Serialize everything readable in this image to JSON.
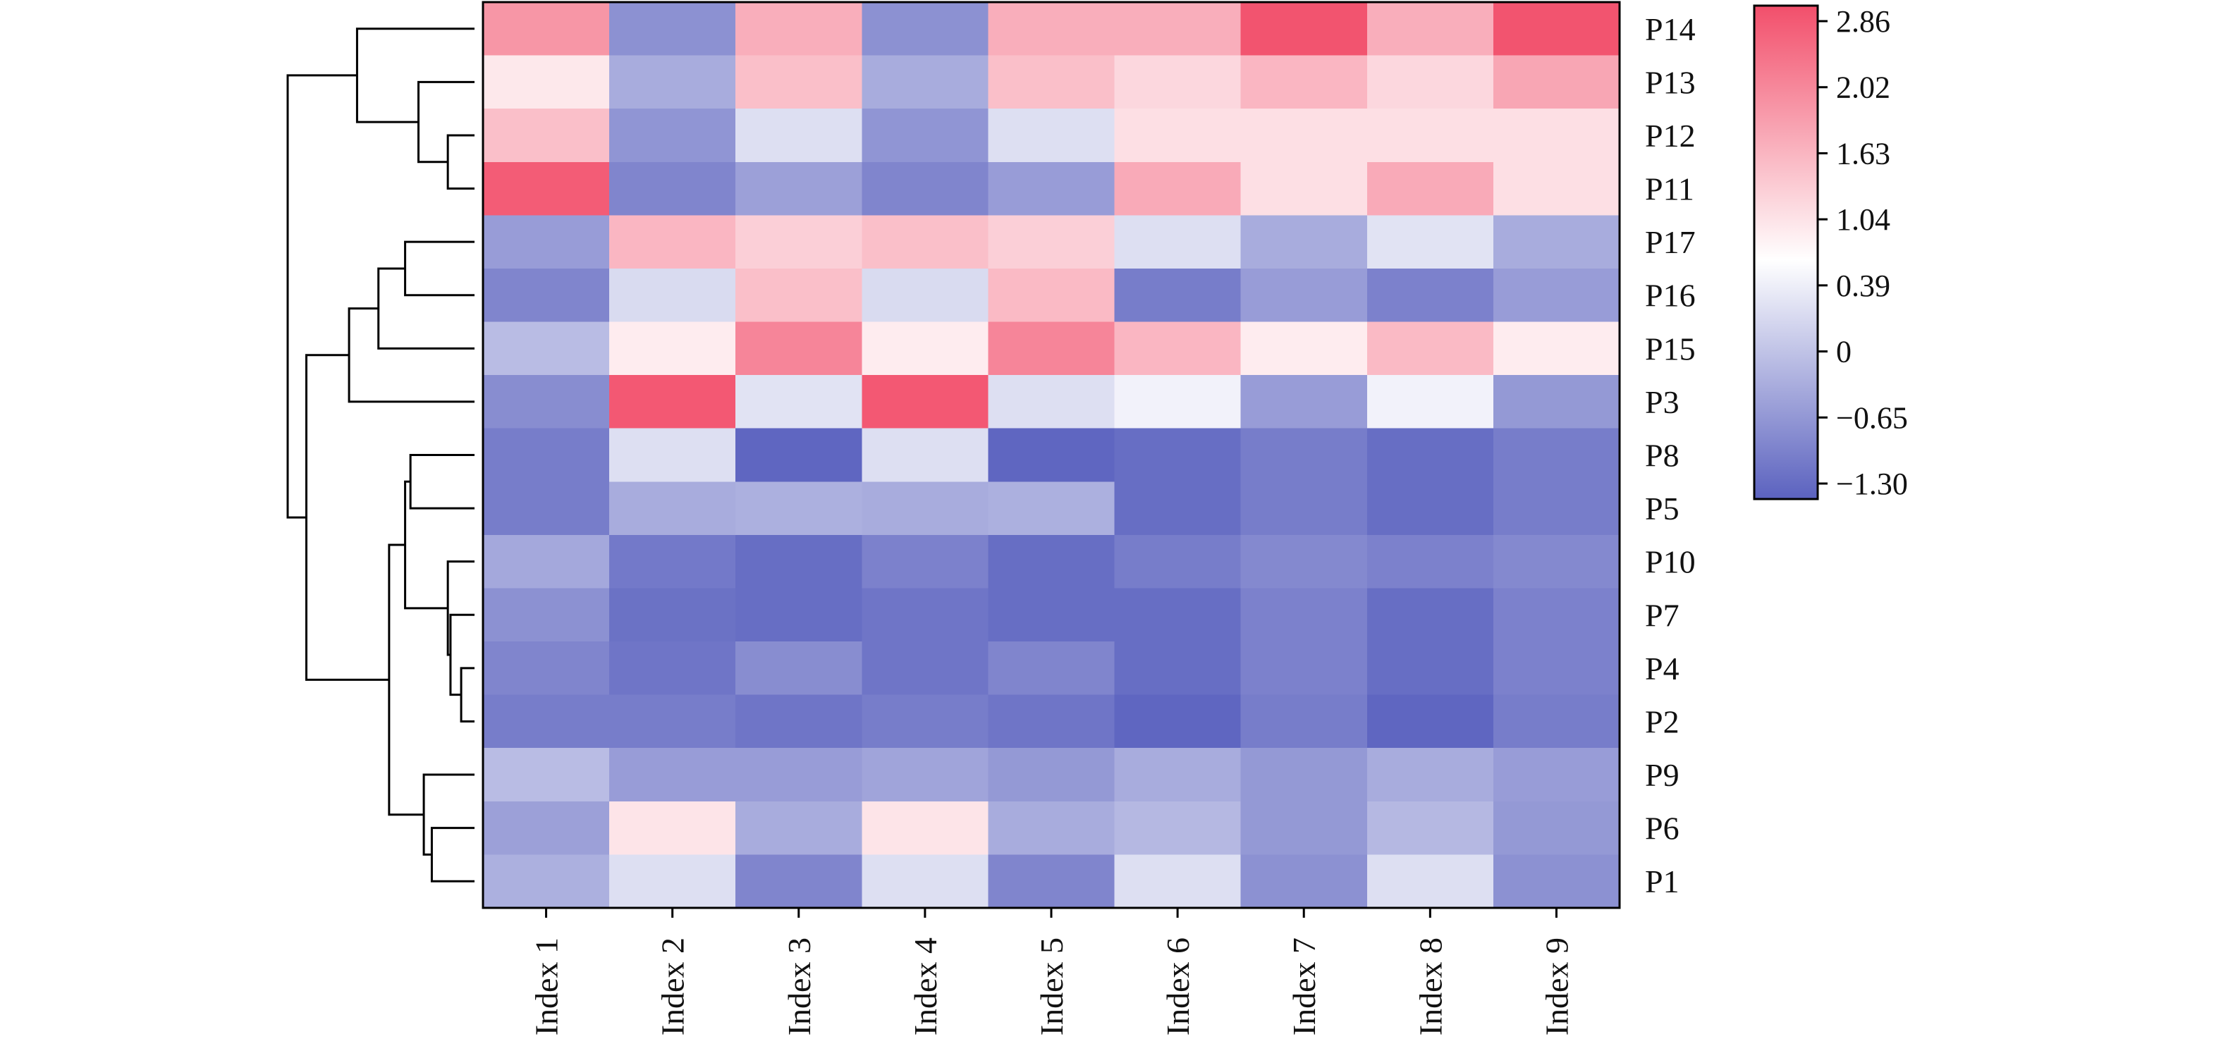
{
  "chart_data": {
    "type": "heatmap",
    "title": "",
    "xlabel": "",
    "ylabel": "",
    "columns": [
      "Index 1",
      "Index 2",
      "Index 3",
      "Index 4",
      "Index 5",
      "Index 6",
      "Index 7",
      "Index 8",
      "Index 9"
    ],
    "rows": [
      "P14",
      "P13",
      "P12",
      "P11",
      "P17",
      "P16",
      "P15",
      "P3",
      "P8",
      "P5",
      "P10",
      "P7",
      "P4",
      "P2",
      "P9",
      "P6",
      "P1"
    ],
    "values": [
      [
        2.0,
        -0.7,
        1.7,
        -0.7,
        1.7,
        1.7,
        2.8,
        1.7,
        2.8
      ],
      [
        1.0,
        -0.35,
        1.5,
        -0.35,
        1.5,
        1.2,
        1.6,
        1.2,
        1.8
      ],
      [
        1.5,
        -0.65,
        0.3,
        -0.65,
        0.3,
        1.1,
        1.1,
        1.1,
        1.1
      ],
      [
        2.7,
        -0.85,
        -0.5,
        -0.85,
        -0.55,
        1.75,
        1.1,
        1.75,
        1.1
      ],
      [
        -0.55,
        1.6,
        1.3,
        1.5,
        1.3,
        0.3,
        -0.35,
        0.35,
        -0.35
      ],
      [
        -0.85,
        0.25,
        1.5,
        0.25,
        1.55,
        -0.95,
        -0.55,
        -0.9,
        -0.55
      ],
      [
        -0.15,
        0.95,
        2.2,
        0.95,
        2.2,
        1.6,
        0.95,
        1.55,
        0.95
      ],
      [
        -0.75,
        2.75,
        0.35,
        2.75,
        0.3,
        0.55,
        -0.55,
        0.55,
        -0.6
      ],
      [
        -0.95,
        0.3,
        -1.25,
        0.3,
        -1.25,
        -1.15,
        -0.95,
        -1.15,
        -0.95
      ],
      [
        -0.95,
        -0.35,
        -0.3,
        -0.35,
        -0.3,
        -1.15,
        -0.95,
        -1.15,
        -0.95
      ],
      [
        -0.4,
        -1.0,
        -1.15,
        -0.9,
        -1.15,
        -0.95,
        -0.8,
        -0.9,
        -0.8
      ],
      [
        -0.7,
        -1.1,
        -1.15,
        -1.05,
        -1.15,
        -1.15,
        -0.9,
        -1.15,
        -0.9
      ],
      [
        -0.85,
        -1.05,
        -0.75,
        -1.05,
        -0.85,
        -1.15,
        -0.9,
        -1.15,
        -0.9
      ],
      [
        -0.95,
        -0.95,
        -1.05,
        -0.95,
        -1.05,
        -1.25,
        -0.95,
        -1.25,
        -0.95
      ],
      [
        -0.15,
        -0.55,
        -0.55,
        -0.45,
        -0.6,
        -0.35,
        -0.6,
        -0.35,
        -0.55
      ],
      [
        -0.5,
        1.05,
        -0.35,
        1.05,
        -0.35,
        -0.2,
        -0.6,
        -0.2,
        -0.6
      ],
      [
        -0.3,
        0.3,
        -0.85,
        0.3,
        -0.85,
        0.3,
        -0.7,
        0.3,
        -0.7
      ]
    ],
    "colorbar": {
      "min": -1.3,
      "max": 2.86,
      "tick_values": [
        2.86,
        2.02,
        1.63,
        1.04,
        0.39,
        0,
        -0.65,
        -1.3
      ],
      "tick_labels": [
        "2.86",
        "2.02",
        "1.63",
        "1.04",
        "0.39",
        "0",
        "−0.65",
        "−1.30"
      ],
      "colors": {
        "low": "#5b62bf",
        "mid": "#ffffff",
        "high": "#f24f6b"
      }
    },
    "row_dendrogram": {
      "side": "left",
      "merges": [
        [
          [
            "P12"
          ],
          [
            "P11"
          ]
        ],
        [
          [
            "P13"
          ],
          [
            "P12",
            "P11"
          ]
        ],
        [
          [
            "P14"
          ],
          [
            "P13",
            "P12",
            "P11"
          ]
        ],
        [
          [
            "P17"
          ],
          [
            "P16"
          ]
        ],
        [
          [
            "P17",
            "P16"
          ],
          [
            "P15"
          ]
        ],
        [
          [
            "P17",
            "P16",
            "P15"
          ],
          [
            "P3"
          ]
        ],
        [
          [
            "P4"
          ],
          [
            "P2"
          ]
        ],
        [
          [
            "P7"
          ],
          [
            "P4",
            "P2"
          ]
        ],
        [
          [
            "P10"
          ],
          [
            "P7",
            "P4",
            "P2"
          ]
        ],
        [
          [
            "P8"
          ],
          [
            "P5"
          ]
        ],
        [
          [
            "P8",
            "P5"
          ],
          [
            "P10",
            "P7",
            "P4",
            "P2"
          ]
        ],
        [
          [
            "P6"
          ],
          [
            "P1"
          ]
        ],
        [
          [
            "P9"
          ],
          [
            "P6",
            "P1"
          ]
        ],
        [
          [
            "P8",
            "P5",
            "P10",
            "P7",
            "P4",
            "P2"
          ],
          [
            "P9",
            "P6",
            "P1"
          ]
        ],
        [
          [
            "P17",
            "P16",
            "P15",
            "P3"
          ],
          [
            "P8",
            "P5",
            "P10",
            "P7",
            "P4",
            "P2",
            "P9",
            "P6",
            "P1"
          ]
        ],
        [
          [
            "P14",
            "P13",
            "P12",
            "P11"
          ],
          [
            "P17",
            "P16",
            "P15",
            "P3",
            "P8",
            "P5",
            "P10",
            "P7",
            "P4",
            "P2",
            "P9",
            "P6",
            "P1"
          ]
        ]
      ],
      "merge_heights": [
        1.0,
        2.1,
        4.4,
        2.6,
        3.6,
        4.7,
        0.5,
        0.9,
        1.0,
        2.4,
        2.6,
        1.6,
        1.9,
        3.2,
        6.3,
        7.0
      ]
    }
  }
}
